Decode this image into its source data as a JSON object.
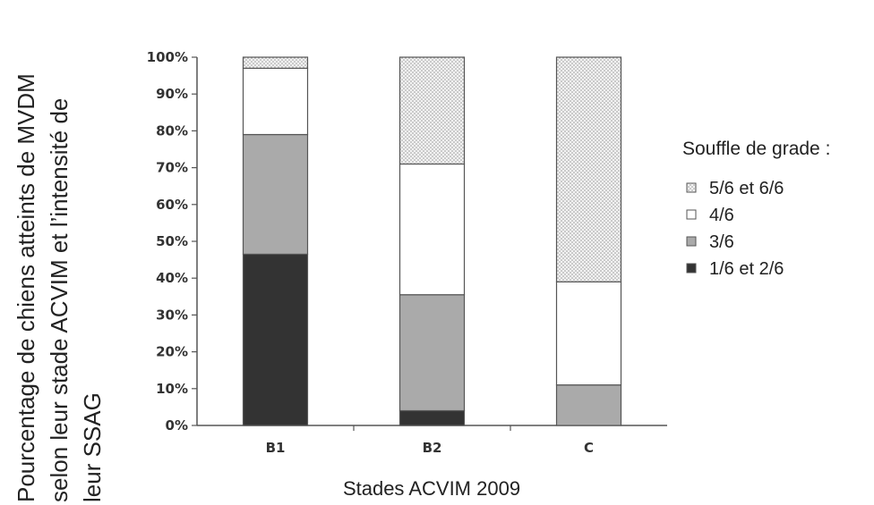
{
  "chart_data": {
    "type": "bar",
    "stacked": true,
    "categories": [
      "B1",
      "B2",
      "C"
    ],
    "series": [
      {
        "name": "1/6 et 2/6",
        "values": [
          46.5,
          4,
          0
        ],
        "color": "#333333",
        "pattern": "solid"
      },
      {
        "name": "3/6",
        "values": [
          32.5,
          31.5,
          11
        ],
        "color": "#aaaaaa",
        "pattern": "solid"
      },
      {
        "name": "4/6",
        "values": [
          18,
          35.5,
          28
        ],
        "color": "#ffffff",
        "pattern": "solid"
      },
      {
        "name": "5/6 et 6/6",
        "values": [
          3,
          29,
          61
        ],
        "color": "#e8e8e8",
        "pattern": "dots"
      }
    ],
    "ylabel_lines": [
      "Pourcentage de chiens atteints de MVDM",
      "selon leur  stade ACVIM et  l’intensité de",
      "leur SSAG"
    ],
    "xlabel": "Stades ACVIM 2009",
    "ylim": [
      0,
      100
    ],
    "yticks": [
      "0%",
      "10%",
      "20%",
      "30%",
      "40%",
      "50%",
      "60%",
      "70%",
      "80%",
      "90%",
      "100%"
    ],
    "legend": {
      "title": "Souffle de grade :",
      "position": "right",
      "items": [
        "5/6 et 6/6",
        "4/6",
        "3/6",
        "1/6 et 2/6"
      ]
    },
    "grid": false
  }
}
